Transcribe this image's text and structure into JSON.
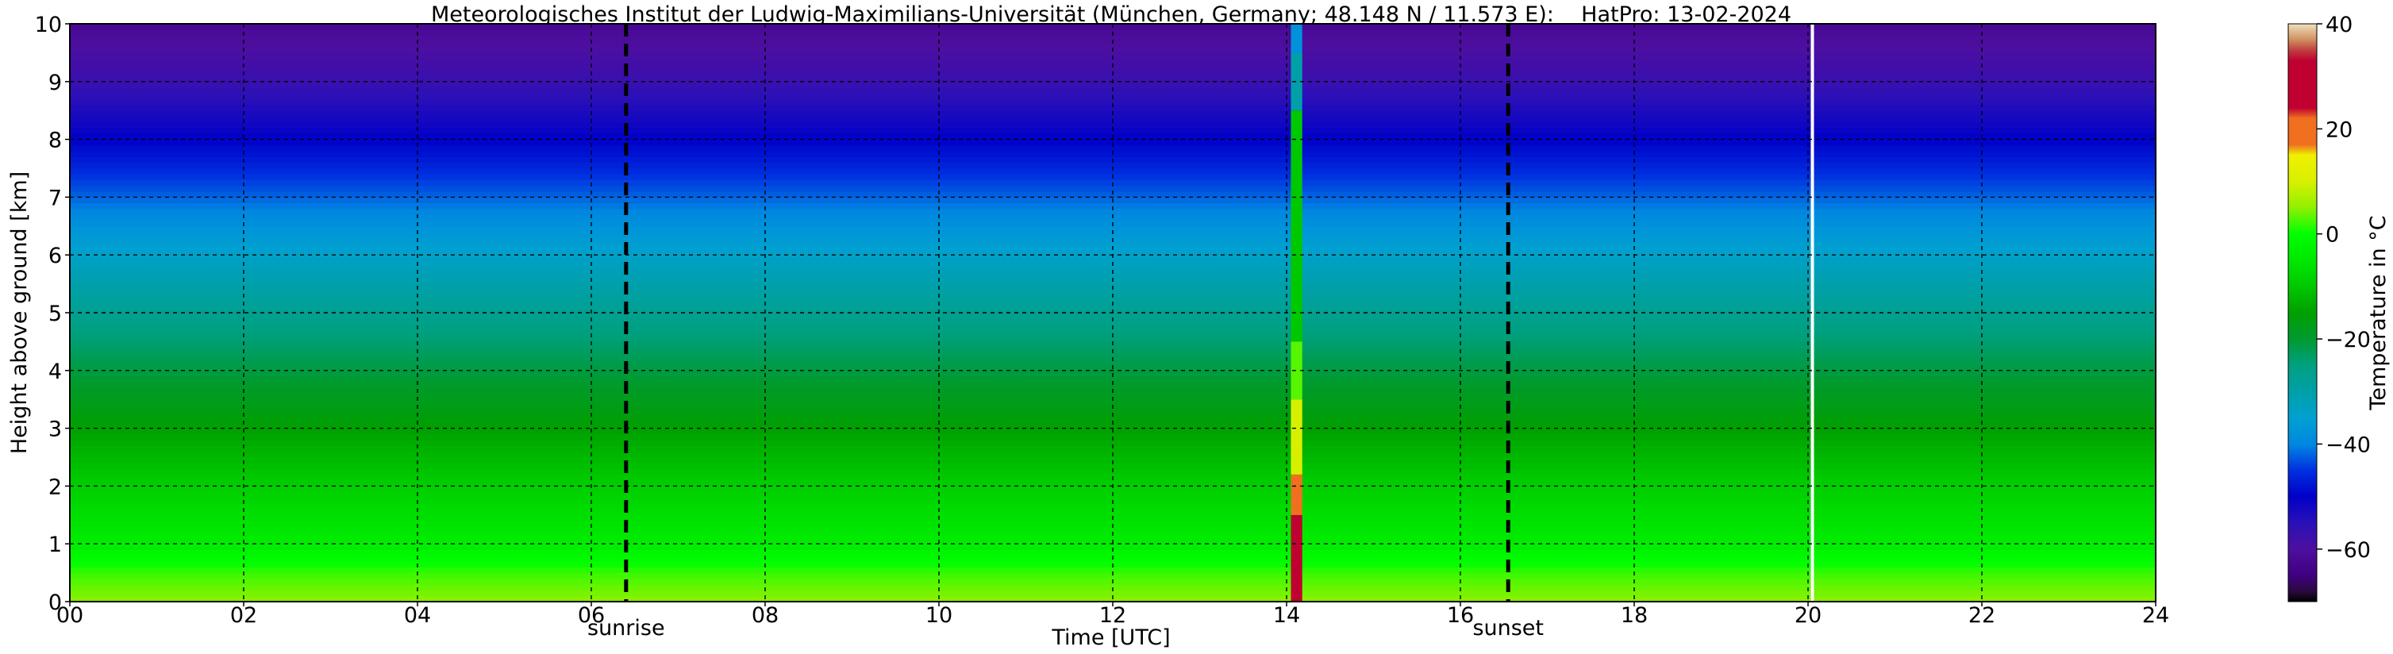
{
  "chart_data": {
    "type": "heatmap",
    "title": "Meteorologisches Institut der Ludwig-Maximilians-Universität (München, Germany; 48.148 N / 11.573 E):    HatPro: 13-02-2024",
    "xlabel": "Time [UTC]",
    "ylabel": "Height above ground [km]",
    "xlim": [
      0,
      24
    ],
    "ylim": [
      0,
      10
    ],
    "x_ticks": [
      {
        "value": 0,
        "label": "00"
      },
      {
        "value": 2,
        "label": "02"
      },
      {
        "value": 4,
        "label": "04"
      },
      {
        "value": 6,
        "label": "06"
      },
      {
        "value": 8,
        "label": "08"
      },
      {
        "value": 10,
        "label": "10"
      },
      {
        "value": 12,
        "label": "12"
      },
      {
        "value": 14,
        "label": "14"
      },
      {
        "value": 16,
        "label": "16"
      },
      {
        "value": 18,
        "label": "18"
      },
      {
        "value": 20,
        "label": "20"
      },
      {
        "value": 22,
        "label": "22"
      },
      {
        "value": 24,
        "label": "24"
      }
    ],
    "y_ticks": [
      {
        "value": 0,
        "label": "0"
      },
      {
        "value": 1,
        "label": "1"
      },
      {
        "value": 2,
        "label": "2"
      },
      {
        "value": 3,
        "label": "3"
      },
      {
        "value": 4,
        "label": "4"
      },
      {
        "value": 5,
        "label": "5"
      },
      {
        "value": 6,
        "label": "6"
      },
      {
        "value": 7,
        "label": "7"
      },
      {
        "value": 8,
        "label": "8"
      },
      {
        "value": 9,
        "label": "9"
      },
      {
        "value": 10,
        "label": "10"
      }
    ],
    "grid": true,
    "annotations": [
      {
        "label": "sunrise",
        "time": 6.4
      },
      {
        "label": "sunset",
        "time": 16.55
      }
    ],
    "missing_data_time": 20.05,
    "temperature_profile_height_km": [
      0,
      0.5,
      1,
      2,
      3,
      4,
      5,
      6,
      7,
      8,
      9,
      10
    ],
    "temperature_profile_c": [
      5,
      2,
      -4,
      -9,
      -15,
      -21,
      -27,
      -34,
      -42,
      -50,
      -57,
      -62
    ],
    "anomaly_column": {
      "time_start": 14.05,
      "time_end": 14.18,
      "segments": [
        {
          "from_km": 0,
          "to_km": 1.5,
          "temp_c": 33
        },
        {
          "from_km": 1.5,
          "to_km": 2.2,
          "temp_c": 22
        },
        {
          "from_km": 2.2,
          "to_km": 3.5,
          "temp_c": 10
        },
        {
          "from_km": 3.5,
          "to_km": 4.5,
          "temp_c": 3
        },
        {
          "from_km": 4.5,
          "to_km": 8.5,
          "temp_c": -10
        },
        {
          "from_km": 8.5,
          "to_km": 9.5,
          "temp_c": -30
        },
        {
          "from_km": 9.5,
          "to_km": 10,
          "temp_c": -38
        }
      ]
    },
    "colorbar": {
      "label": "Temperature in °C",
      "min": -70,
      "max": 40,
      "ticks": [
        {
          "value": -60,
          "label": "−60"
        },
        {
          "value": -40,
          "label": "−40"
        },
        {
          "value": -20,
          "label": "−20"
        },
        {
          "value": 0,
          "label": "0"
        },
        {
          "value": 20,
          "label": "20"
        },
        {
          "value": 40,
          "label": "40"
        }
      ],
      "color_stops": [
        {
          "value": -70,
          "color": "#000000"
        },
        {
          "value": -68,
          "color": "#2a0a40"
        },
        {
          "value": -65,
          "color": "#400080"
        },
        {
          "value": -60,
          "color": "#4d0fa0"
        },
        {
          "value": -55,
          "color": "#2a10b8"
        },
        {
          "value": -50,
          "color": "#0000c8"
        },
        {
          "value": -45,
          "color": "#0030e0"
        },
        {
          "value": -40,
          "color": "#0088e0"
        },
        {
          "value": -35,
          "color": "#00a0d0"
        },
        {
          "value": -30,
          "color": "#00a0a8"
        },
        {
          "value": -25,
          "color": "#00a080"
        },
        {
          "value": -20,
          "color": "#009a30"
        },
        {
          "value": -15,
          "color": "#00a000"
        },
        {
          "value": -10,
          "color": "#00c800"
        },
        {
          "value": -5,
          "color": "#00e800"
        },
        {
          "value": 0,
          "color": "#00ff00"
        },
        {
          "value": 5,
          "color": "#90f000"
        },
        {
          "value": 10,
          "color": "#d8f000"
        },
        {
          "value": 15,
          "color": "#f0f000"
        },
        {
          "value": 17,
          "color": "#f07020"
        },
        {
          "value": 22,
          "color": "#f07020"
        },
        {
          "value": 24,
          "color": "#c00030"
        },
        {
          "value": 33,
          "color": "#c00030"
        },
        {
          "value": 35,
          "color": "#c04040"
        },
        {
          "value": 37,
          "color": "#d09060"
        },
        {
          "value": 40,
          "color": "#f0e0c0"
        }
      ]
    }
  }
}
